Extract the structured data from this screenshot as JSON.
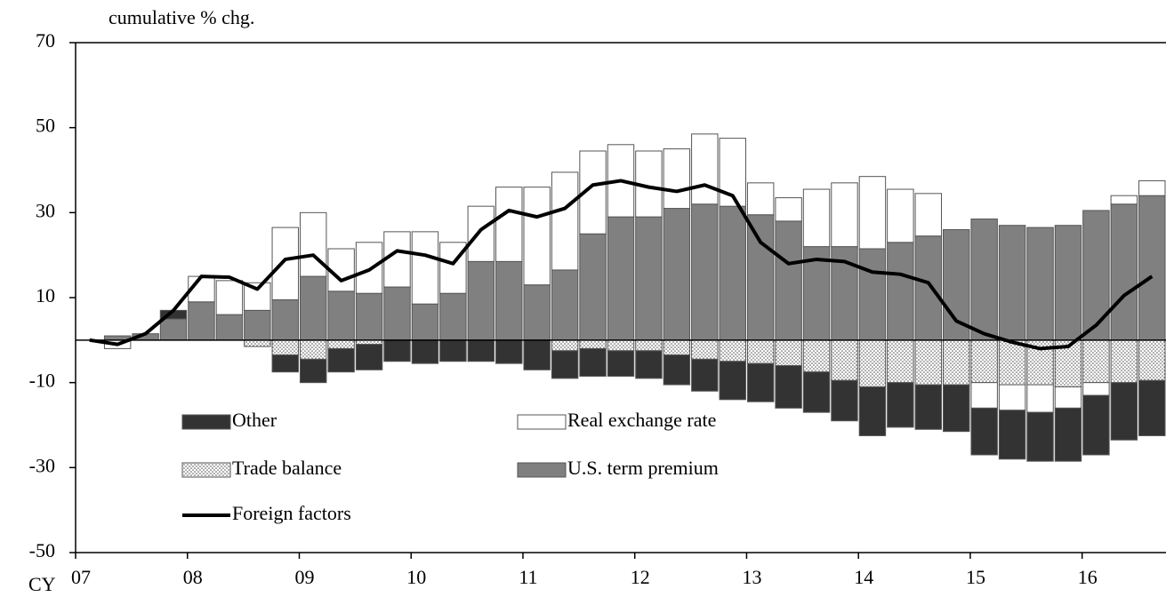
{
  "chart_data": {
    "type": "stacked_bar_line",
    "ylabel": "cumulative % chg.",
    "xlabel": "CY",
    "categories": [
      "07",
      null,
      null,
      null,
      "08",
      null,
      null,
      null,
      "09",
      null,
      null,
      null,
      "10",
      null,
      null,
      null,
      "11",
      null,
      null,
      null,
      "12",
      null,
      null,
      null,
      "13",
      null,
      null,
      null,
      "14",
      null,
      null,
      null,
      "15",
      null,
      null,
      null,
      "16",
      null,
      null
    ],
    "series": [
      {
        "name": "U.S. term premium",
        "color": "#808080",
        "values": [
          0,
          1,
          1.5,
          5,
          9,
          6,
          7,
          9.5,
          15,
          11.5,
          11,
          12.5,
          8.5,
          11,
          18.5,
          18.5,
          13,
          16.5,
          25,
          29,
          29,
          31,
          32,
          31.5,
          29.5,
          28,
          22,
          22,
          21.5,
          23,
          24.5,
          26,
          28.5,
          27,
          26.5,
          27,
          30.5,
          32,
          34
        ]
      },
      {
        "name": "Trade balance",
        "color": "#ffffff",
        "pattern": "dots",
        "values": [
          0,
          0,
          0,
          0,
          0,
          0,
          -1.5,
          -3.5,
          -4.5,
          -2,
          -1,
          0,
          0,
          0,
          0,
          0,
          0,
          -2.5,
          -2,
          -2.5,
          -2.5,
          -3.5,
          -4.5,
          -5,
          -5.5,
          -6,
          -7.5,
          -9.5,
          -11,
          -10,
          -10.5,
          -10.5,
          -10,
          -10.5,
          -10.5,
          -11,
          -10,
          -10,
          -9.5
        ]
      },
      {
        "name": "Real exchange rate",
        "color": "#ffffff",
        "values": [
          0,
          -2,
          0,
          0,
          6,
          8,
          6.5,
          17,
          15,
          10,
          12,
          13,
          17,
          12,
          13,
          17.5,
          23,
          23,
          19.5,
          17,
          15.5,
          14,
          16.5,
          16,
          7.5,
          5.5,
          13.5,
          15,
          17,
          12.5,
          10,
          0,
          -6,
          -6,
          -6.5,
          -5,
          -3,
          2,
          3.5
        ]
      },
      {
        "name": "Other",
        "color": "#333333",
        "values": [
          0,
          0,
          0,
          2,
          0,
          0,
          0,
          -4,
          -5.5,
          -5.5,
          -6,
          -5,
          -5.5,
          -5,
          -5,
          -5.5,
          -7,
          -6.5,
          -6.5,
          -6,
          -6.5,
          -7,
          -7.5,
          -9,
          -9,
          -10,
          -9.5,
          -9.5,
          -11.5,
          -10.5,
          -10.5,
          -11,
          -11,
          -11.5,
          -11.5,
          -12.5,
          -14,
          -13.5,
          -13
        ]
      }
    ],
    "line": {
      "name": "Foreign factors",
      "color": "#000000",
      "values": [
        0,
        -1,
        1.5,
        7,
        15,
        14.8,
        12,
        19,
        20,
        14,
        16.5,
        21,
        20,
        18,
        26,
        30.5,
        29,
        31,
        36.5,
        37.5,
        36,
        35,
        36.5,
        34,
        23,
        18,
        19,
        18.5,
        16,
        15.5,
        13.5,
        4.5,
        1.5,
        -0.5,
        -2,
        -1.5,
        3.5,
        10.5,
        15
      ]
    },
    "ylim": [
      -50,
      70
    ],
    "yticks": [
      -50,
      -30,
      -10,
      10,
      30,
      50,
      70
    ]
  }
}
